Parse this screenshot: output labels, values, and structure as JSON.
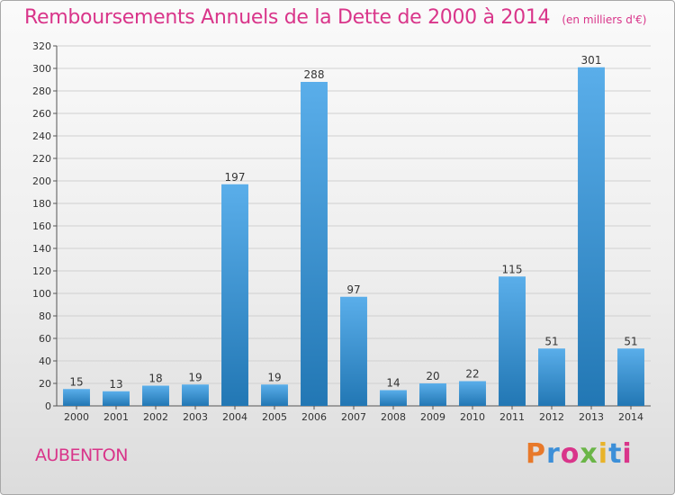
{
  "header": {
    "title": "Remboursements Annuels de la Dette de 2000 à 2014",
    "unit": "(en milliers d'€)"
  },
  "footer": {
    "place": "AUBENTON",
    "brand": "Proxiti",
    "brand_colors": [
      "#e8792a",
      "#3c8fd8",
      "#d9358a",
      "#6ab547",
      "#e8b32a",
      "#3c8fd8",
      "#d9358a"
    ]
  },
  "colors": {
    "accent": "#d9358a",
    "bar_top": "#5aaeea",
    "bar_bottom": "#2277b4",
    "grid": "#d0d0d0"
  },
  "chart_data": {
    "type": "bar",
    "title": "Remboursements Annuels de la Dette de 2000 à 2014",
    "xlabel": "",
    "ylabel": "",
    "categories": [
      "2000",
      "2001",
      "2002",
      "2003",
      "2004",
      "2005",
      "2006",
      "2007",
      "2008",
      "2009",
      "2010",
      "2011",
      "2012",
      "2013",
      "2014"
    ],
    "values": [
      15,
      13,
      18,
      19,
      197,
      19,
      288,
      97,
      14,
      20,
      22,
      115,
      51,
      301,
      51
    ],
    "ylim": [
      0,
      320
    ],
    "yticks": [
      0,
      20,
      40,
      60,
      80,
      100,
      120,
      140,
      160,
      180,
      200,
      220,
      240,
      260,
      280,
      300,
      320
    ],
    "grid": true,
    "legend": "none"
  }
}
